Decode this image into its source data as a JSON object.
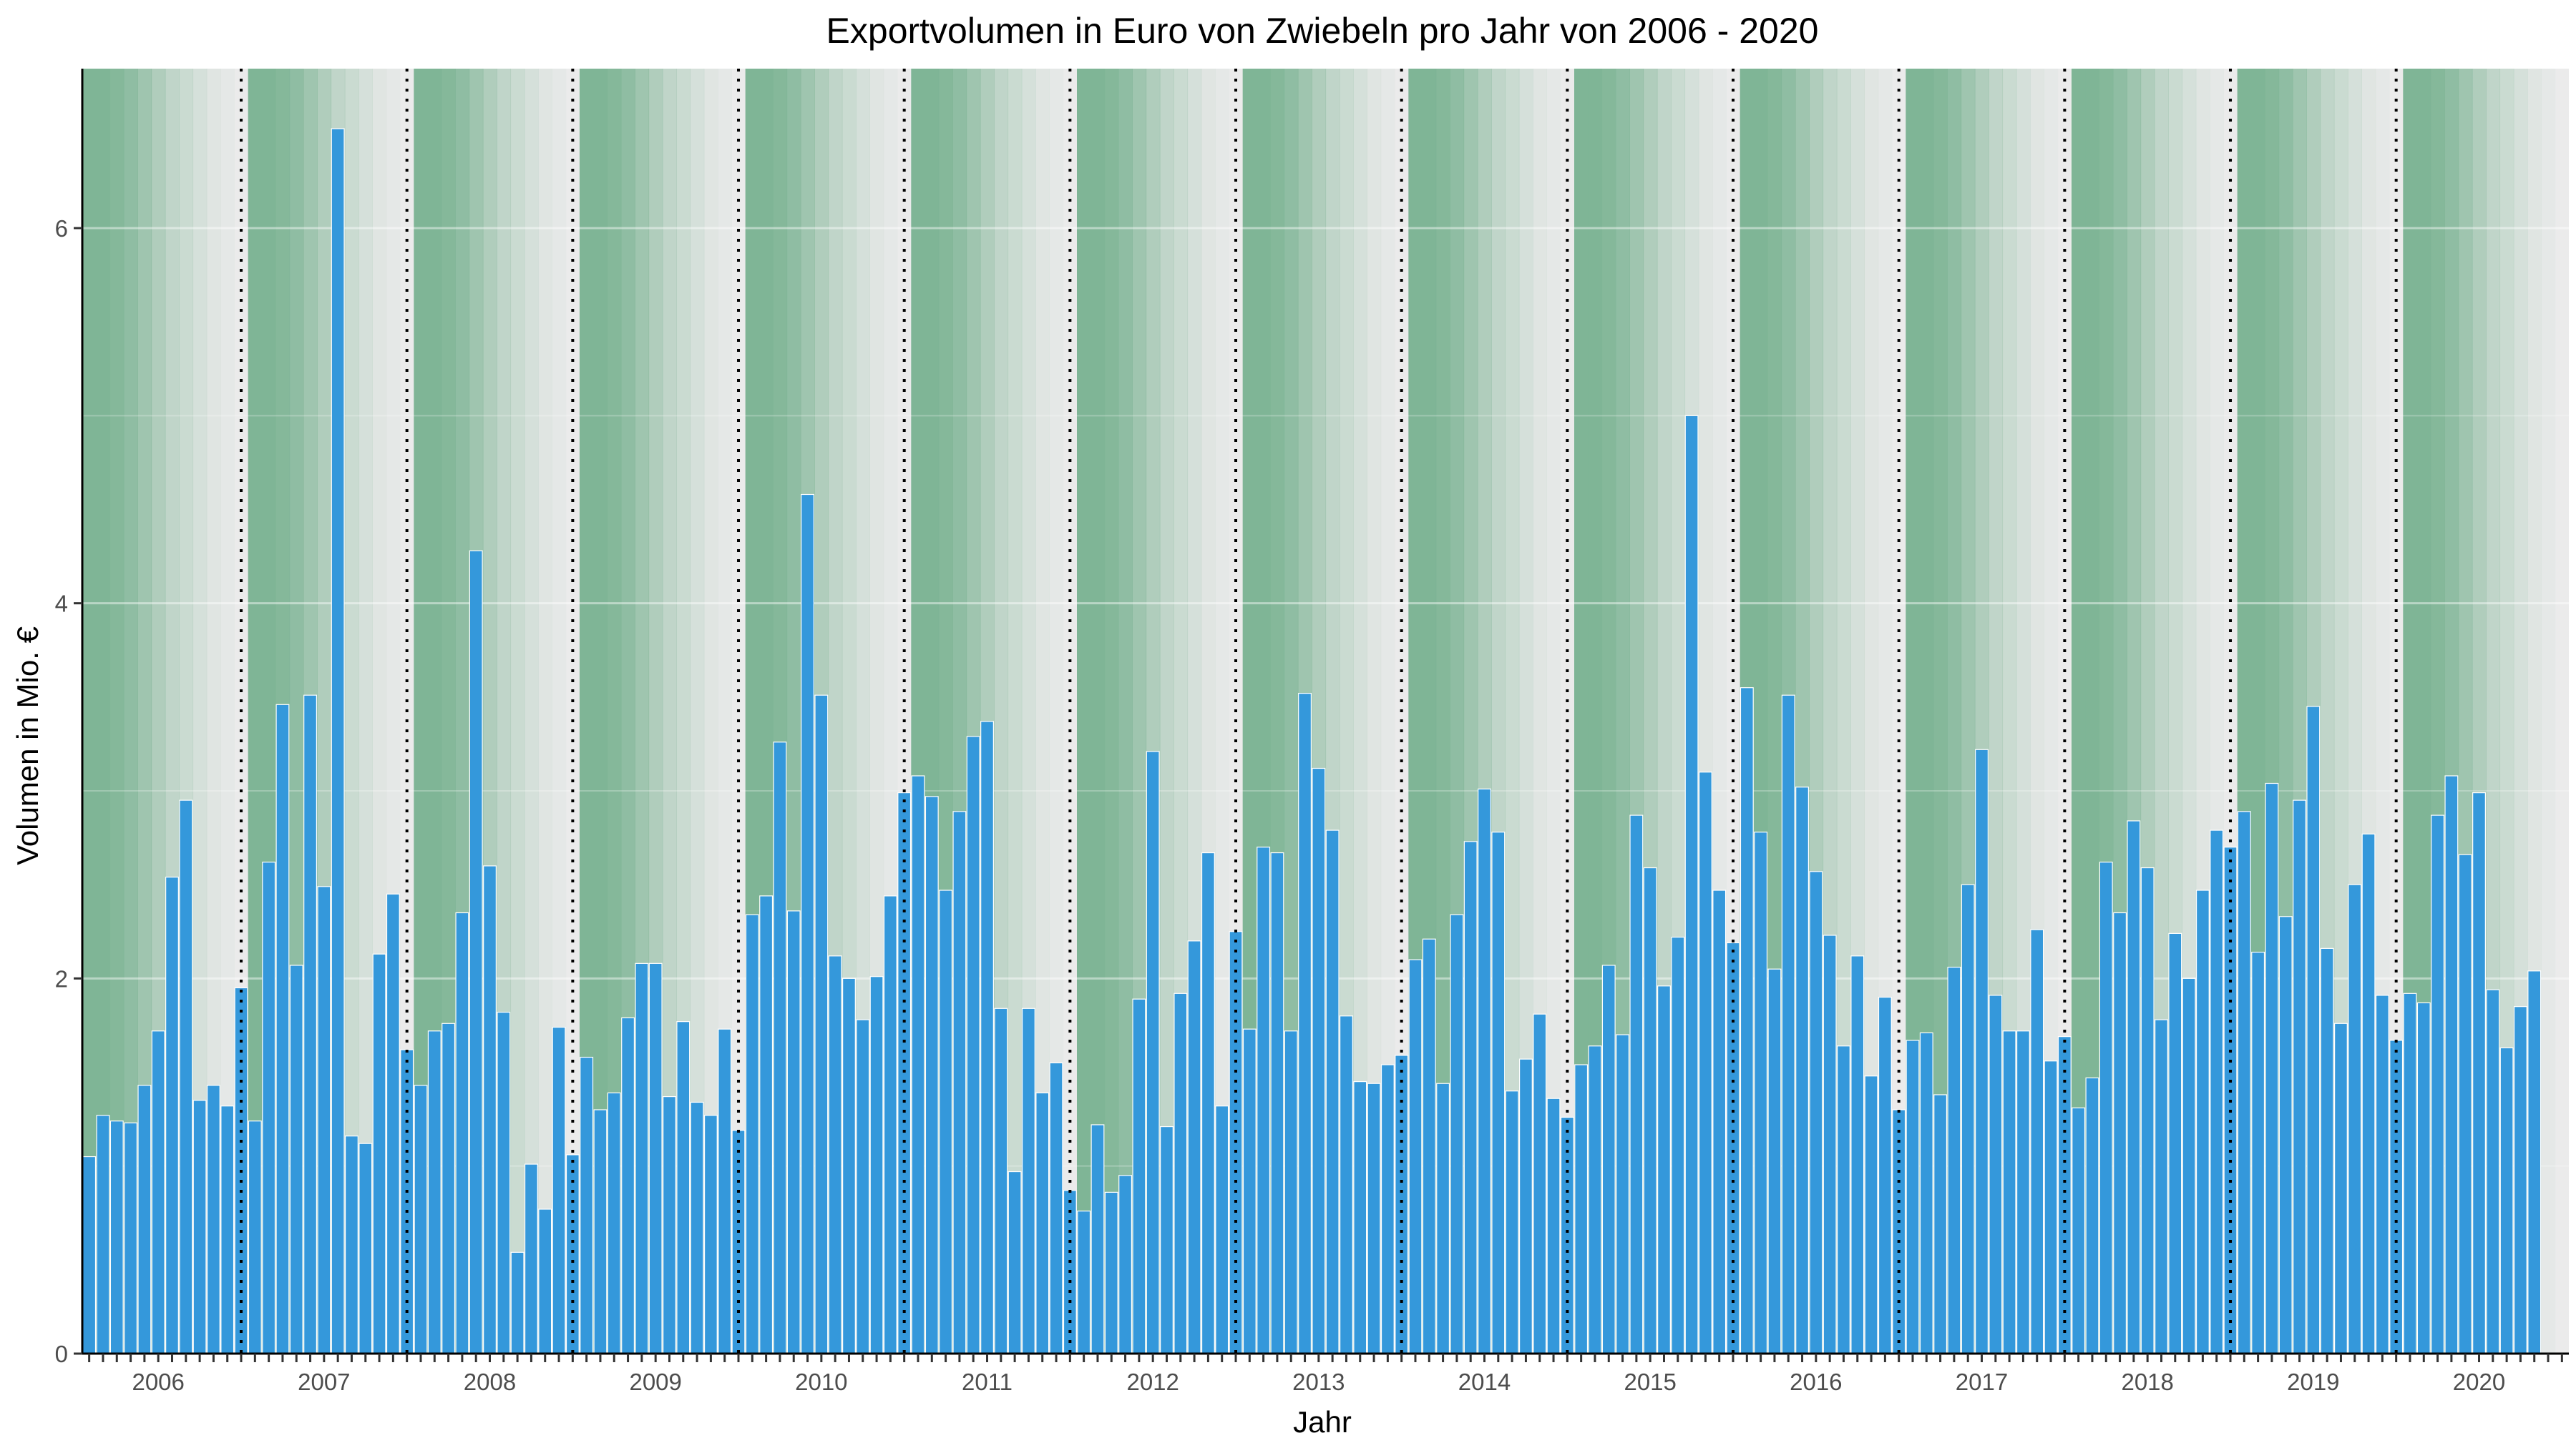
{
  "chart_data": {
    "type": "bar",
    "title": "Exportvolumen in Euro von Zwiebeln pro Jahr von 2006 - 2020",
    "xlabel": "Jahr",
    "ylabel": "Volumen in Mio. €",
    "ylim": [
      0,
      6.85
    ],
    "yticks": [
      "0",
      "2",
      "4",
      "6"
    ],
    "years": [
      "2006",
      "2007",
      "2008",
      "2009",
      "2010",
      "2011",
      "2012",
      "2013",
      "2014",
      "2015",
      "2016",
      "2017",
      "2018",
      "2019",
      "2020"
    ],
    "months_per_year": 12,
    "grid": true,
    "legend": "none",
    "colors": {
      "bar": "#3498db",
      "bar_outline": "#ffffff",
      "season_band": "#7fb596",
      "panel_background": "#ebebeb",
      "year_divider": "#000000"
    },
    "background_pattern_monthly_opacity": [
      1.0,
      1.0,
      0.95,
      0.85,
      0.7,
      0.55,
      0.4,
      0.3,
      0.2,
      0.1,
      0.05,
      0.0
    ],
    "values": [
      1.05,
      1.27,
      1.24,
      1.23,
      1.43,
      1.72,
      2.54,
      2.95,
      1.35,
      1.43,
      1.32,
      1.95,
      1.24,
      2.62,
      3.46,
      2.07,
      3.51,
      2.49,
      6.53,
      1.16,
      1.12,
      2.13,
      2.45,
      1.62,
      1.43,
      1.72,
      1.76,
      2.35,
      4.28,
      2.6,
      1.82,
      0.54,
      1.01,
      0.77,
      1.74,
      1.06,
      1.58,
      1.3,
      1.39,
      1.79,
      2.08,
      2.08,
      1.37,
      1.77,
      1.34,
      1.27,
      1.73,
      1.19,
      2.34,
      2.44,
      3.26,
      2.36,
      4.58,
      3.51,
      2.12,
      2.0,
      1.78,
      2.01,
      2.44,
      2.99,
      3.08,
      2.97,
      2.47,
      2.89,
      3.29,
      3.37,
      1.84,
      0.97,
      1.84,
      1.39,
      1.55,
      0.87,
      0.76,
      1.22,
      0.86,
      0.95,
      1.89,
      3.21,
      1.21,
      1.92,
      2.2,
      2.67,
      1.32,
      2.25,
      1.73,
      2.7,
      2.67,
      1.72,
      3.52,
      3.12,
      2.79,
      1.8,
      1.45,
      1.44,
      1.54,
      1.59,
      2.1,
      2.21,
      1.44,
      2.34,
      2.73,
      3.01,
      2.78,
      1.4,
      1.57,
      1.81,
      1.36,
      1.26,
      1.54,
      1.64,
      2.07,
      1.7,
      2.87,
      2.59,
      1.96,
      2.22,
      5.0,
      3.1,
      2.47,
      2.19,
      3.55,
      2.78,
      2.05,
      3.51,
      3.02,
      2.57,
      2.23,
      1.64,
      2.12,
      1.48,
      1.9,
      1.3,
      1.67,
      1.71,
      1.38,
      2.06,
      2.5,
      3.22,
      1.91,
      1.72,
      1.72,
      2.26,
      1.56,
      1.69,
      1.31,
      1.47,
      2.62,
      2.35,
      2.84,
      2.59,
      1.78,
      2.24,
      2.0,
      2.47,
      2.79,
      2.7,
      2.89,
      2.14,
      3.04,
      2.33,
      2.95,
      3.45,
      2.16,
      1.76,
      2.5,
      2.77,
      1.91,
      1.67,
      1.92,
      1.87,
      2.87,
      3.08,
      2.66,
      2.99,
      1.94,
      1.63,
      1.85,
      2.04
    ]
  }
}
